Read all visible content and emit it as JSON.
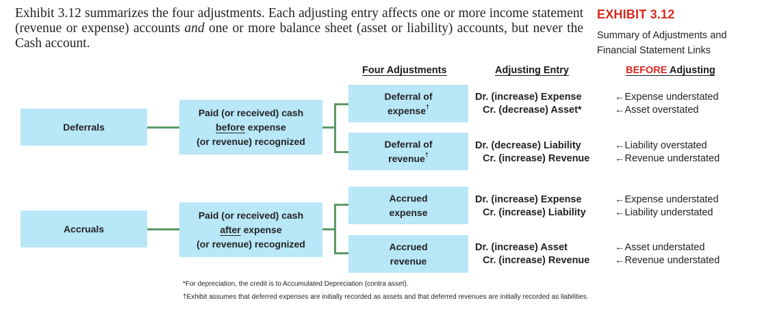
{
  "intro": {
    "part1": "Exhibit 3.12 summarizes the four adjustments. Each adjusting entry affects one or more income statement (revenue or expense) accounts ",
    "emph": "and",
    "part2": " one or more balance sheet (asset or liability) accounts, but never the Cash account."
  },
  "exhibit": {
    "title": "EXHIBIT 3.12",
    "subtitle": "Summary of Adjustments and Financial Statement Links"
  },
  "headers": {
    "four": "Four Adjustments",
    "entry": "Adjusting Entry",
    "before_red": "BEFORE",
    "before_rest": " Adjusting"
  },
  "groups": [
    {
      "name": "Deferrals",
      "desc_line1": "Paid (or received) cash",
      "desc_ul": "before",
      "desc_line2_rest": " expense",
      "desc_line3": "(or revenue) recognized",
      "items": [
        {
          "label_a": "Deferral of",
          "label_b": "expense",
          "mark": "†",
          "dr": "Dr. (increase) Expense",
          "cr": "Cr. (decrease) Asset*",
          "eff1": "Expense understated",
          "eff2": "Asset overstated"
        },
        {
          "label_a": "Deferral of",
          "label_b": "revenue",
          "mark": "†",
          "dr": "Dr. (decrease) Liability",
          "cr": "Cr. (increase) Revenue",
          "eff1": "Liability overstated",
          "eff2": "Revenue understated"
        }
      ]
    },
    {
      "name": "Accruals",
      "desc_line1": "Paid (or received) cash",
      "desc_ul": "after",
      "desc_line2_rest": " expense",
      "desc_line3": "(or revenue) recognized",
      "items": [
        {
          "label_a": "Accrued",
          "label_b": "expense",
          "mark": "",
          "dr": "Dr. (increase) Expense",
          "cr": "Cr. (increase) Liability",
          "eff1": "Expense understated",
          "eff2": "Liability understated"
        },
        {
          "label_a": "Accrued",
          "label_b": "revenue",
          "mark": "",
          "dr": "Dr. (increase) Asset",
          "cr": "Cr. (increase) Revenue",
          "eff1": "Asset understated",
          "eff2": "Revenue understated"
        }
      ]
    }
  ],
  "arrow": "←",
  "footnotes": [
    "*For depreciation, the credit is to Accumulated Depreciation (contra asset).",
    "†Exhibit assumes that deferred expenses are initially recorded as assets and that deferred revenues are initially recorded as liabilities."
  ]
}
